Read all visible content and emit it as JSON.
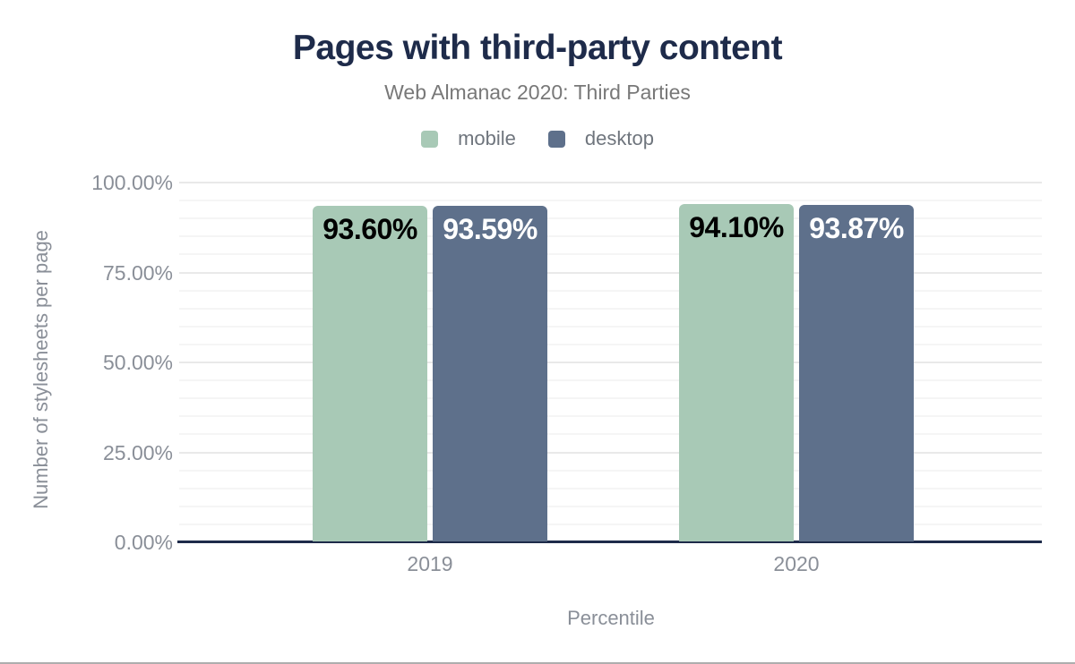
{
  "chart_data": {
    "type": "bar",
    "title": "Pages with third-party content",
    "subtitle": "Web Almanac 2020: Third Parties",
    "xlabel": "Percentile",
    "ylabel": "Number of stylesheets per page",
    "categories": [
      "2019",
      "2020"
    ],
    "series": [
      {
        "name": "mobile",
        "color": "#a8c9b6",
        "label_color": "#000000",
        "values": [
          93.6,
          94.1
        ],
        "data_labels": [
          "93.60%",
          "94.10%"
        ]
      },
      {
        "name": "desktop",
        "color": "#5e708b",
        "label_color": "#ffffff",
        "values": [
          93.59,
          93.87
        ],
        "data_labels": [
          "93.59%",
          "93.87%"
        ]
      }
    ],
    "y_axis": {
      "min": 0,
      "max": 100,
      "major_step": 25,
      "minor_step": 5,
      "tick_labels": [
        "0.00%",
        "25.00%",
        "50.00%",
        "75.00%",
        "100.00%"
      ]
    },
    "legend_position": "top",
    "grid": true,
    "colors": {
      "title": "#1e2b4a",
      "subtitle": "#787878",
      "legend_text": "#6f757d",
      "axis_text": "#8a8f98",
      "axis_line": "#1e2b4a",
      "grid_major": "#e9e9e9",
      "grid_minor": "#f5f5f5",
      "screen_edge": "#aeaeae"
    }
  }
}
